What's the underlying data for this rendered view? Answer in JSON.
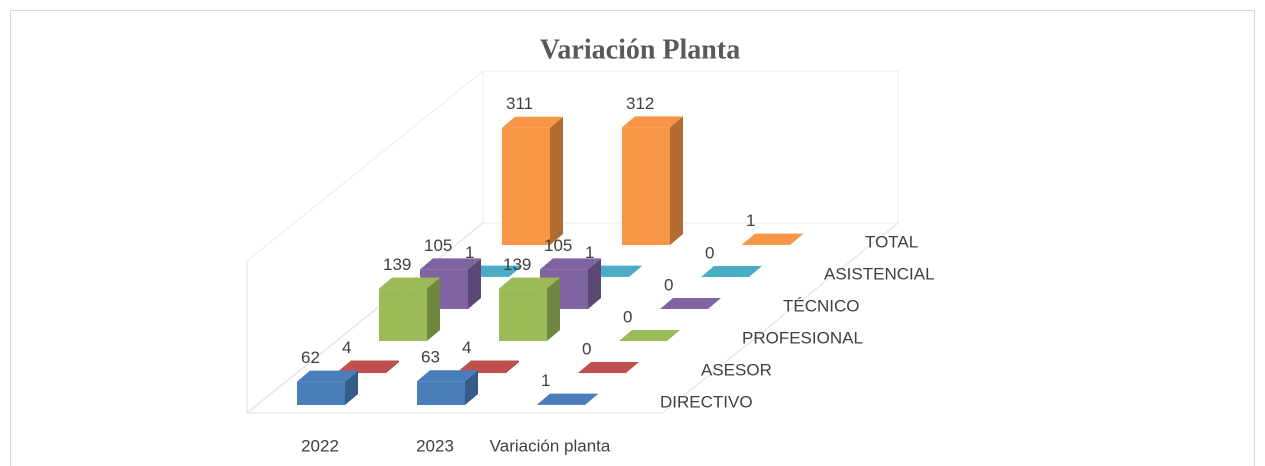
{
  "chart_data": {
    "type": "bar3d",
    "title": "Variación Planta",
    "categories": [
      "2022",
      "2023",
      "Variación planta"
    ],
    "series": [
      {
        "name": "DIRECTIVO",
        "color": "#4a7ebb",
        "values": [
          62,
          63,
          1
        ]
      },
      {
        "name": "ASESOR",
        "color": "#c0504d",
        "values": [
          4,
          4,
          0
        ]
      },
      {
        "name": "PROFESIONAL",
        "color": "#9bbb59",
        "values": [
          139,
          139,
          0
        ]
      },
      {
        "name": "TÉCNICO",
        "color": "#8064a2",
        "values": [
          105,
          105,
          0
        ]
      },
      {
        "name": "ASISTENCIAL",
        "color": "#4bacc6",
        "values": [
          1,
          1,
          0
        ]
      },
      {
        "name": "TOTAL",
        "color": "#f79646",
        "values": [
          311,
          312,
          1
        ]
      }
    ],
    "ylim": [
      0,
      350
    ]
  }
}
